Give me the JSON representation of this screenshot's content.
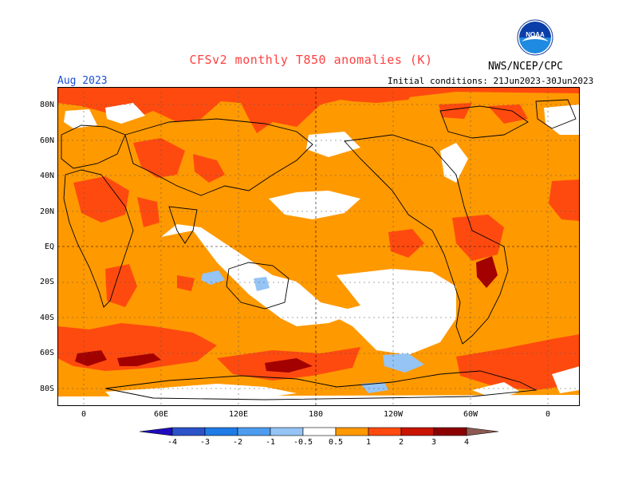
{
  "header": {
    "title": "CFSv2 monthly T850 anomalies (K)",
    "month": "Aug 2023",
    "initial_conditions": "Initial conditions: 21Jun2023-30Jun2023",
    "agency": "NWS/NCEP/CPC",
    "logo_text": "NOAA"
  },
  "map": {
    "lat_labels": [
      "80N",
      "60N",
      "40N",
      "20N",
      "EQ",
      "20S",
      "40S",
      "60S",
      "80S"
    ],
    "lon_labels": [
      "0",
      "60E",
      "120E",
      "180",
      "120W",
      "60W",
      "0"
    ]
  },
  "colorbar": {
    "labels": [
      "-4",
      "-3",
      "-2",
      "-1",
      "-0.5",
      "0.5",
      "1",
      "2",
      "3",
      "4"
    ],
    "colors": [
      "#1f0cbf",
      "#2b52c8",
      "#1f7ce6",
      "#4d9cf0",
      "#95c4f5",
      "#ffffff",
      "#ff9900",
      "#ff4a0f",
      "#c81400",
      "#8b0000",
      "#c8a09a",
      "#8c5a52"
    ]
  },
  "palette": {
    "orange": "#ff9900",
    "red": "#ff4a0f",
    "darkred": "#a30000",
    "lightblue": "#95c4f5",
    "white": "#ffffff"
  }
}
